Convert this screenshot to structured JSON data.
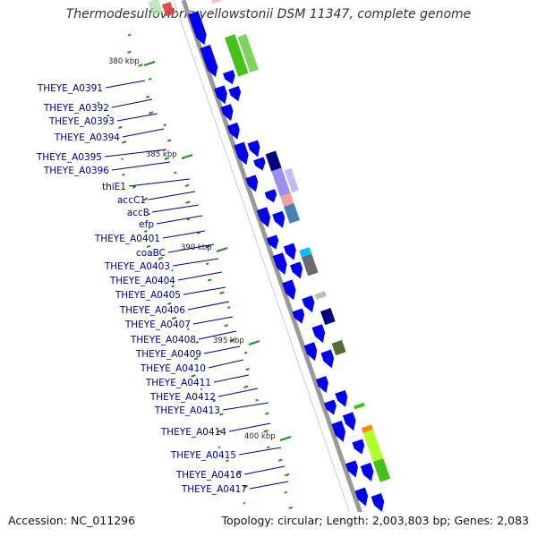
{
  "title": "Thermodesulfovibrio yellowstonii DSM 11347, complete genome",
  "footer": {
    "accession": "Accession: NC_011296",
    "topology": "Topology: circular; Length: 2,003,803 bp; Genes: 2,083"
  },
  "scale_labels": [
    "380 kbp",
    "385 kbp",
    "390 kbp",
    "395 kbp",
    "400 kbp"
  ],
  "gene_labels": [
    "THEYE_A0391",
    "THEYE_A0392",
    "THEYE_A0393",
    "THEYE_A0394",
    "THEYE_A0395",
    "THEYE_A0396",
    "thiE1",
    "accC1",
    "accB",
    "efp",
    "THEYE_A0401",
    "coaBC",
    "THEYE_A0403",
    "THEYE_A0404",
    "THEYE_A0405",
    "THEYE_A0406",
    "THEYE_A0407",
    "THEYE_A0408",
    "THEYE_A0409",
    "THEYE_A0410",
    "THEYE_A0411",
    "THEYE_A0412",
    "THEYE_A0413",
    "THEYE_A0414",
    "THEYE_A0415",
    "THEYE_A0416",
    "THEYE_A0417"
  ],
  "colors": {
    "genes": "#0000ee",
    "labels": "#00008b",
    "backbone": "#999999",
    "gc_skew": "#228b22",
    "cog_green": "#44c21a",
    "cog_purple": "#7b68ee",
    "cog_pink": "#f4a0a0",
    "cog_steel": "#4682b4",
    "cog_cyan": "#00bfff",
    "cog_grey": "#696969",
    "cog_olive": "#556b2f",
    "cog_navy": "#000080",
    "cog_orange": "#ff8c00",
    "cog_lime": "#adff2f"
  }
}
